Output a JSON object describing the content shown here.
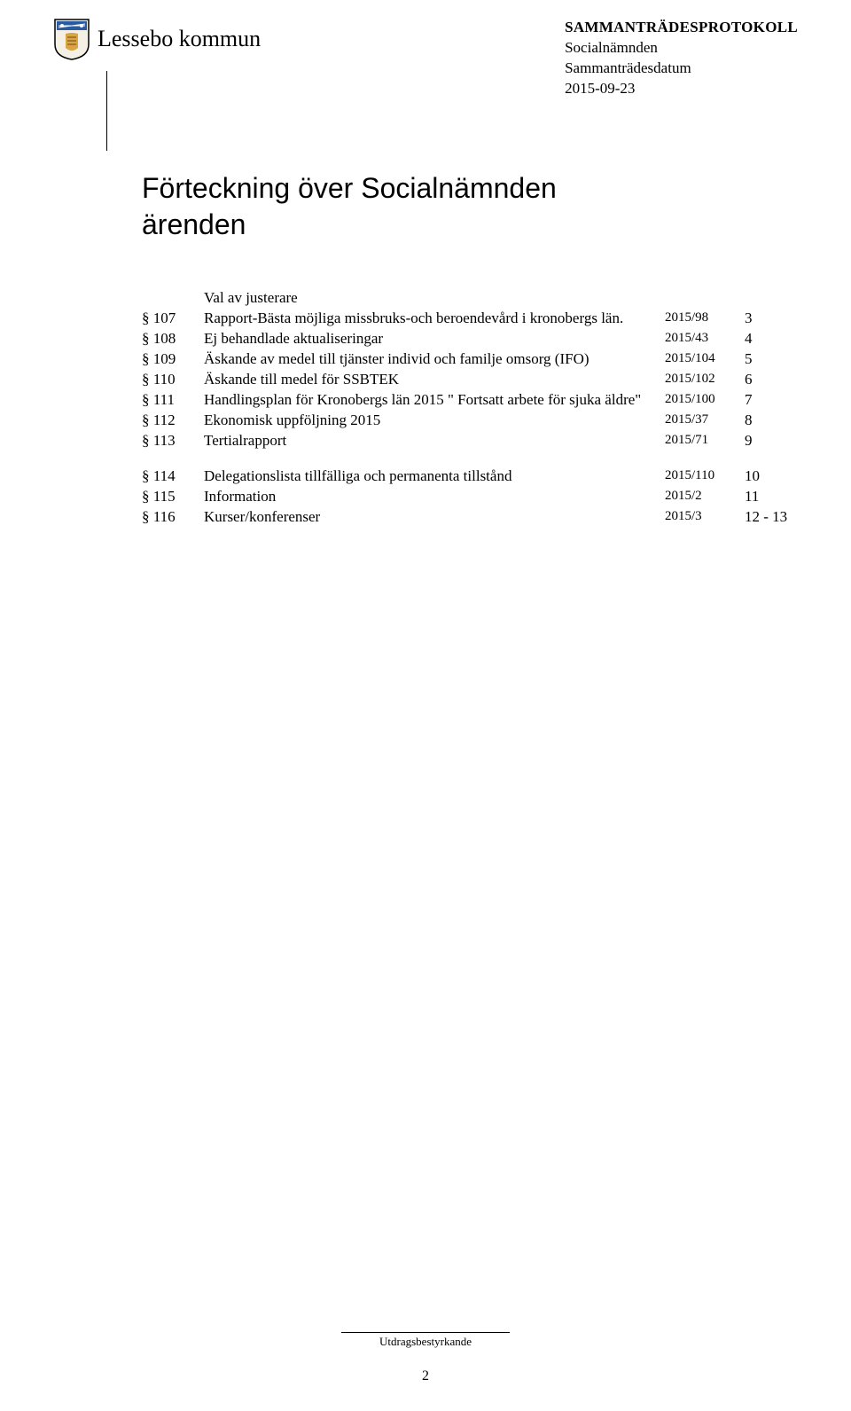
{
  "header": {
    "kommun": "Lessebo kommun",
    "protocol": "SAMMANTRÄDESPROTOKOLL",
    "board": "Socialnämnden",
    "meeting_label": "Sammanträdesdatum",
    "meeting_date": "2015-09-23"
  },
  "title_line1": "Förteckning över Socialnämnden",
  "title_line2": "ärenden",
  "toc_header": "Val av justerare",
  "toc": [
    {
      "num": "§ 107",
      "title": "Rapport-Bästa möjliga missbruks-och beroendevård i kronobergs län.",
      "ref": "2015/98",
      "page": "3"
    },
    {
      "num": "§ 108",
      "title": "Ej behandlade aktualiseringar",
      "ref": "2015/43",
      "page": "4"
    },
    {
      "num": "§ 109",
      "title": "Äskande av medel till tjänster individ och familje omsorg (IFO)",
      "ref": "2015/104",
      "page": "5"
    },
    {
      "num": "§ 110",
      "title": "Äskande till medel för SSBTEK",
      "ref": "2015/102",
      "page": "6"
    },
    {
      "num": "§ 111",
      "title": "Handlingsplan för Kronobergs län 2015 \" Fortsatt arbete för sjuka äldre\"",
      "ref": "2015/100",
      "page": "7"
    },
    {
      "num": "§ 112",
      "title": "Ekonomisk uppföljning 2015",
      "ref": "2015/37",
      "page": "8"
    },
    {
      "num": "§ 113",
      "title": "Tertialrapport",
      "ref": "2015/71",
      "page": "9"
    }
  ],
  "toc2": [
    {
      "num": "§ 114",
      "title": "Delegationslista tillfälliga och  permanenta tillstånd",
      "ref": "2015/110",
      "page": "10"
    },
    {
      "num": "§ 115",
      "title": "Information",
      "ref": "2015/2",
      "page": "11"
    },
    {
      "num": "§ 116",
      "title": "Kurser/konferenser",
      "ref": "2015/3",
      "page": "12 - 13"
    }
  ],
  "footer": {
    "label": "Utdragsbestyrkande",
    "pagenum": "2"
  },
  "colors": {
    "text": "#000000",
    "background": "#ffffff",
    "crest_blue": "#2a5aa0",
    "crest_gold": "#d9a441"
  }
}
